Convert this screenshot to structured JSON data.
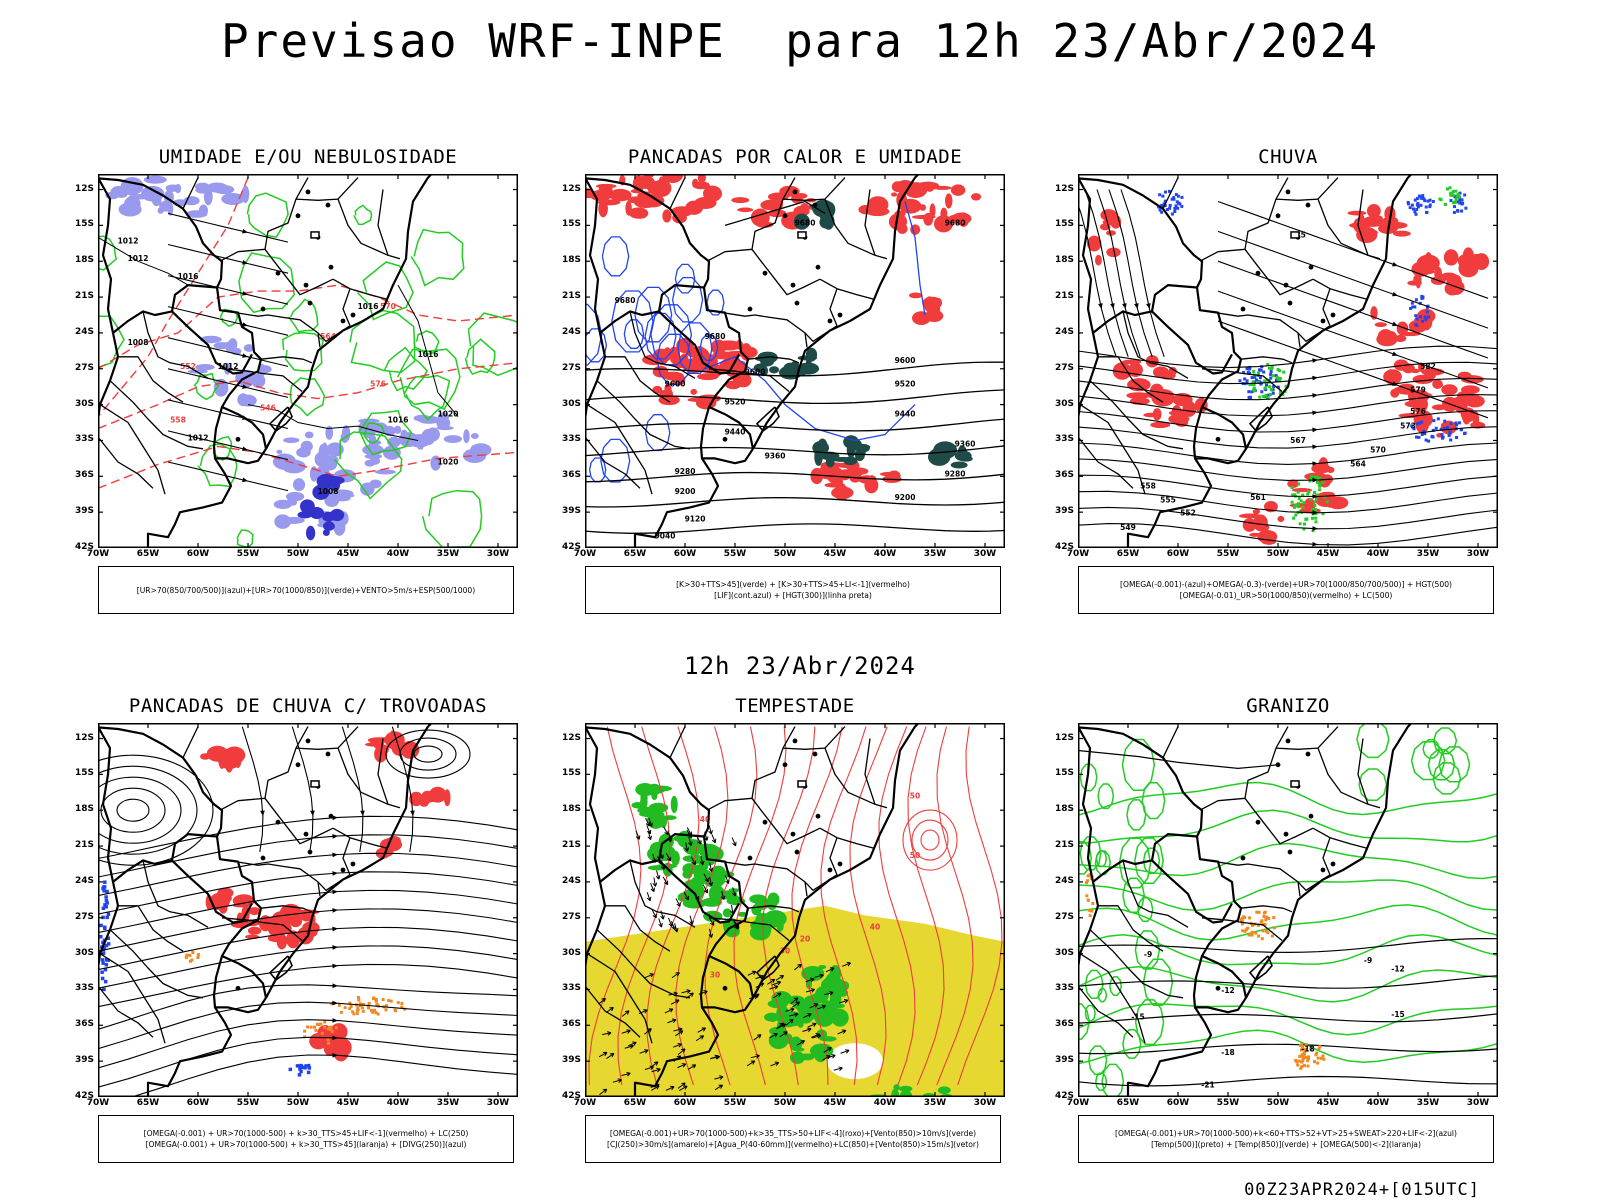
{
  "title": "Previsao WRF-INPE  para 12h 23/Abr/2024",
  "subtitle": "12h 23/Abr/2024",
  "footer": "00Z23APR2024+[015UTC]",
  "axis": {
    "lat_labels": [
      "12S",
      "15S",
      "18S",
      "21S",
      "24S",
      "27S",
      "30S",
      "33S",
      "36S",
      "39S",
      "42S"
    ],
    "lon_labels": [
      "70W",
      "65W",
      "60W",
      "55W",
      "50W",
      "45W",
      "40W",
      "35W",
      "30W"
    ]
  },
  "colors": {
    "red": "#f03c3c",
    "green": "#22cc22",
    "blue": "#2244ee",
    "lavender": "#9999ee",
    "yellow": "#e6d830",
    "orange": "#f08a20",
    "darkgreen": "#1e4a48",
    "brightgreen": "#22bb22"
  },
  "panels": [
    {
      "title": "UMIDADE E/OU NEBULOSIDADE",
      "legend": [
        "[UR>70(850/700/500)](azul)+[UR>70(1000/850)](verde)+VENTO>5m/s+ESP(500/1000)"
      ],
      "contour_labels": [
        "1012",
        "1012",
        "1016",
        "1016",
        "1008",
        "1016",
        "1012",
        "1012",
        "1016",
        "1020",
        "1020",
        "1008",
        "570",
        "576",
        "552",
        "546",
        "564",
        "558"
      ]
    },
    {
      "title": "PANCADAS POR CALOR E UMIDADE",
      "legend": [
        "[K>30+TTS>45](verde) + [K>30+TTS>45+LI<-1](vermelho)",
        "[LIF](cont.azul) + [HGT(300)](linha preta)"
      ],
      "contour_labels": [
        "9680",
        "9680",
        "9680",
        "9680",
        "9600",
        "9600",
        "9600",
        "9520",
        "9520",
        "9440",
        "9440",
        "9360",
        "9360",
        "9280",
        "9280",
        "9200",
        "9200",
        "9120",
        "9040"
      ]
    },
    {
      "title": "CHUVA",
      "legend": [
        "[OMEGA(-0.001)-(azul)+OMEGA(-0.3)-(verde)+UR>70(1000/850/700/500)] + HGT(500)",
        "[OMEGA(-0.01)_UR>50(1000/850)(vermelho) + LC(500)"
      ],
      "contour_labels": [
        "585",
        "582",
        "579",
        "576",
        "573",
        "570",
        "567",
        "564",
        "561",
        "558",
        "555",
        "552",
        "549"
      ]
    },
    {
      "title": "PANCADAS DE CHUVA C/ TROVOADAS",
      "legend": [
        "[OMEGA(-0.001) + UR>70(1000-500) + k>30_TTS>45+LIF<-1](vermelho) + LC(250)",
        "[OMEGA(-0.001) + UR>70(1000-500) + k>30_TTS>45](laranja) + [DIVG(250)](azul)"
      ],
      "contour_labels": []
    },
    {
      "title": "TEMPESTADE",
      "legend": [
        "[OMEGA(-0.001)+UR>70(1000-500)+k>35_TTS>50+LIF<-4](roxo)+[Vento(850)>10m/s](verde)",
        "[CJ(250)>30m/s](amarelo)+[Agua_P(40-60mm)](vermelho)+LC(850)+[Vento(850)>15m/s](vetor)"
      ],
      "contour_labels": [
        "50",
        "50",
        "40",
        "40",
        "30",
        "30",
        "20"
      ]
    },
    {
      "title": "GRANIZO",
      "legend": [
        "[OMEGA(-0.001)+UR>70(1000-500)+k<60+TTS>52+VT>25+SWEAT>220+LIF<-2](azul)",
        "[Temp(500)](preto) + [Temp(850)](verde) + [OMEGA(500)<-2](laranja)"
      ],
      "contour_labels": [
        "-9",
        "-9",
        "-12",
        "-12",
        "-15",
        "-15",
        "-18",
        "-18",
        "-21"
      ]
    }
  ]
}
